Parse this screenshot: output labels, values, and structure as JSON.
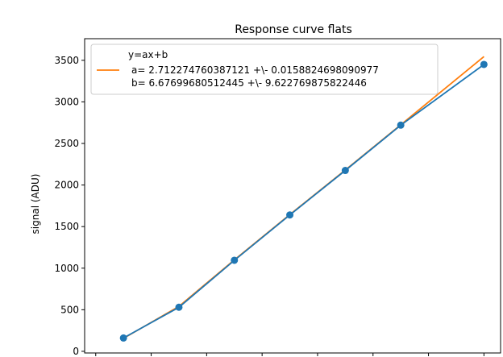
{
  "chart_data": {
    "type": "line",
    "title": "Response curve flats",
    "ylabel": "signal (ADU)",
    "xlabel": "",
    "ylim": [
      -20,
      3760
    ],
    "xlim": [
      0.3,
      7.8
    ],
    "y_ticks": [
      0,
      500,
      1000,
      1500,
      2000,
      2500,
      3000,
      3500
    ],
    "y_tick_labels": [
      "0",
      "500",
      "1000",
      "1500",
      "2000",
      "2500",
      "3000",
      "3500"
    ],
    "x_ticks": [
      0.5,
      1.5,
      2.5,
      3.5,
      4.5,
      5.5,
      6.5,
      7.5
    ],
    "grid": false,
    "legend_position": "top-left",
    "legend": {
      "title": "y=ax+b",
      "line1": "a= 2.712274760387121 +\\- 0.0158824698090977",
      "line2": "b= 6.67699680512445 +\\- 9.622769875822446"
    },
    "series": [
      {
        "kind": "line-markers",
        "color": "#1f77b4",
        "x": [
          1,
          2,
          3,
          4,
          5,
          6,
          7.5
        ],
        "y": [
          160,
          530,
          1095,
          1640,
          2175,
          2720,
          3450
        ]
      },
      {
        "kind": "line",
        "color": "#ff7f0e",
        "x": [
          1,
          2,
          3,
          4,
          5,
          6,
          7.5
        ],
        "y": [
          155,
          540,
          1100,
          1645,
          2180,
          2725,
          3545
        ]
      }
    ]
  }
}
